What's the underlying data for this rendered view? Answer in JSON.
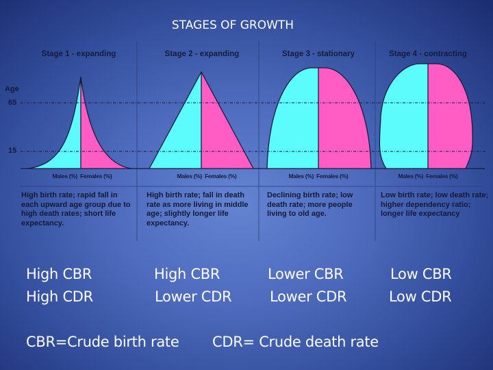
{
  "title": "STAGES OF GROWTH",
  "axis": {
    "label": "Age",
    "ticks": [
      "65",
      "15"
    ]
  },
  "colors": {
    "males": "#5cfcfc",
    "females": "#ff5cc4"
  },
  "stages": [
    {
      "title": "Stage 1 - expanding",
      "males": "Males (%)",
      "females": "Females (%)",
      "description": "High birth rate; rapid fall in each upward age group due to high death rates; short life expectancy."
    },
    {
      "title": "Stage 2 - expanding",
      "males": "Males (%)",
      "females": "Females (%)",
      "description": "High birth rate; fall in death rate as more living in middle age; slightly longer life expectancy."
    },
    {
      "title": "Stage 3 - stationary",
      "males": "Males (%)",
      "females": "Females (%)",
      "description": "Declining birth rate; low death rate; more people living to old age."
    },
    {
      "title": "Stage 4 - contracting",
      "males": "Males (%)",
      "females": "Females (%)",
      "description": "Low birth rate; low death rate; higher dependency ratio; longer life expectancy"
    }
  ],
  "rates": {
    "cbr": [
      "High CBR",
      "High CBR",
      "Lower CBR",
      "Low CBR"
    ],
    "cdr": [
      "High CDR",
      "Lower CDR",
      "Lower CDR",
      "Low CDR"
    ]
  },
  "legend": {
    "cbr": "CBR=Crude birth rate",
    "cdr": "CDR= Crude death rate"
  }
}
